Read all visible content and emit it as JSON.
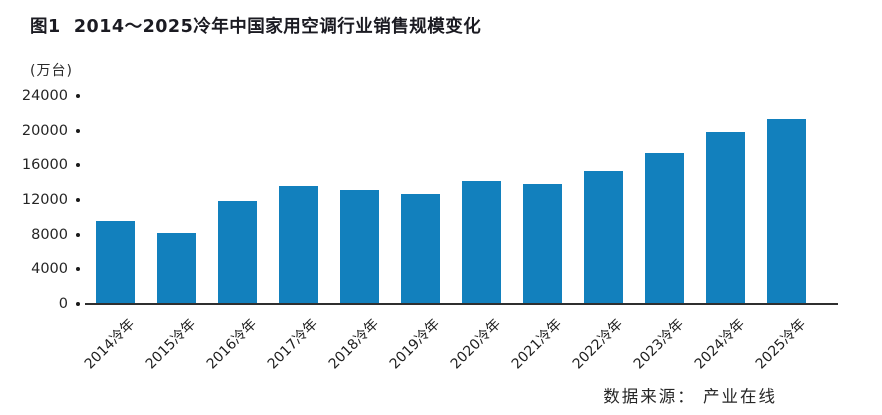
{
  "title": "图1  2014～2025冷年中国家用空调行业销售规模变化",
  "unit_label": "(万台)",
  "source_label": "数据来源： 产业在线",
  "colors": {
    "bar": "#1280bd",
    "axis": "#2f2f2f",
    "title_text": "#1b1b22",
    "background": "#ffffff"
  },
  "chart_data": {
    "type": "bar",
    "title": "图1 2014～2025冷年中国家用空调行业销售规模变化",
    "ylabel": "万台",
    "categories": [
      "2014冷年",
      "2015冷年",
      "2016冷年",
      "2017冷年",
      "2018冷年",
      "2019冷年",
      "2020冷年",
      "2021冷年",
      "2022冷年",
      "2023冷年",
      "2024冷年",
      "2025冷年"
    ],
    "values": [
      9600,
      8150,
      11900,
      13600,
      13200,
      12700,
      14200,
      13800,
      15350,
      17450,
      19900,
      21400
    ],
    "ylim": [
      0,
      24000
    ],
    "yticks": [
      0,
      4000,
      8000,
      12000,
      16000,
      20000,
      24000
    ],
    "grid": false,
    "legend": null,
    "annotations": [
      "数据来源： 产业在线"
    ]
  }
}
